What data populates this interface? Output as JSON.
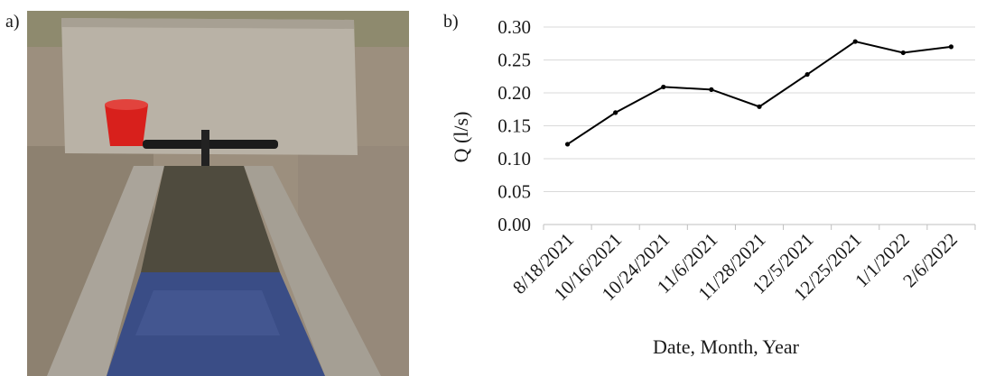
{
  "panels": {
    "a_label": "a)",
    "b_label": "b)"
  },
  "photo": {
    "subject": "spring-water-trough",
    "colors": {
      "concrete_wall": "#b7b0a4",
      "ground": "#9c8f7e",
      "water": "#3a4d86",
      "bucket": "#d8201c",
      "pipe": "#1b1b1b"
    }
  },
  "chart_data": {
    "type": "line",
    "title": "",
    "xlabel": "Date, Month, Year",
    "ylabel": "Q (l/s)",
    "categories": [
      "8/18/2021",
      "10/16/2021",
      "10/24/2021",
      "11/6/2021",
      "11/28/2021",
      "12/5/2021",
      "12/25/2021",
      "1/1/2022",
      "2/6/2022"
    ],
    "series": [
      {
        "values": [
          0.122,
          0.17,
          0.209,
          0.205,
          0.179,
          0.228,
          0.278,
          0.261,
          0.27
        ]
      }
    ],
    "ylim": [
      0,
      0.3
    ],
    "yticks": [
      "0.00",
      "0.05",
      "0.10",
      "0.15",
      "0.20",
      "0.25",
      "0.30"
    ],
    "grid": true,
    "colors": {
      "line": "#000000",
      "grid": "#d9d9d9"
    }
  }
}
